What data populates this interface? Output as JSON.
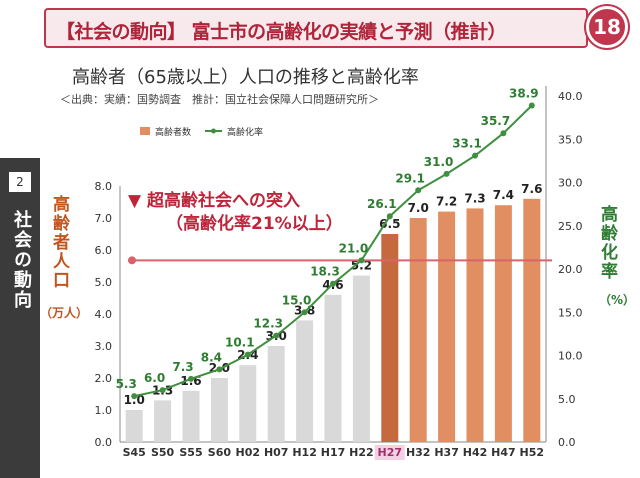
{
  "header": {
    "title": "【社会の動向】 富士市の高齢化の実績と予測（推計）",
    "page_number": "18"
  },
  "sidebar": {
    "number": "2",
    "title": "社会の動向"
  },
  "subtitle": "高齢者（65歳以上）人口の推移と高齢化率",
  "source": "＜出典：実績：国勢調査　推計：国立社会保障人口問題研究所＞",
  "annotation": {
    "line1": "▼ 超高齢社会への突入",
    "line2": "（高齢化率21%以上）"
  },
  "colors": {
    "banner_border": "#c0364d",
    "actual_bar": "#d9d9d9",
    "estimate_bar": "#e08e62",
    "highlight_bar": "#c56a3e",
    "rate_line": "#3f8f3f",
    "threshold_line": "#d9636a"
  },
  "chart_data": {
    "type": "bar",
    "title": "高齢者（65歳以上）人口の推移と高齢化率",
    "categories": [
      "S45",
      "S50",
      "S55",
      "S60",
      "H02",
      "H07",
      "H12",
      "H17",
      "H22",
      "H27",
      "H32",
      "H37",
      "H42",
      "H47",
      "H52"
    ],
    "highlight_category": "H27",
    "series": [
      {
        "name": "高齢者数",
        "axis": "left",
        "type": "bar",
        "values": [
          1.0,
          1.3,
          1.6,
          2.0,
          2.4,
          3.0,
          3.8,
          4.6,
          5.2,
          6.5,
          7.0,
          7.2,
          7.3,
          7.4,
          7.6
        ],
        "labels": [
          "1.0",
          "1.3",
          "1.6",
          "2.0",
          "2.4",
          "3.0",
          "3.8",
          "4.6",
          "5.2",
          "6.5",
          "7.0",
          "7.2",
          "7.3",
          "7.4",
          "7.6"
        ]
      },
      {
        "name": "高齢化率",
        "axis": "right",
        "type": "line",
        "values": [
          5.3,
          6.0,
          7.3,
          8.4,
          10.1,
          12.3,
          15.0,
          18.3,
          21.0,
          26.1,
          29.1,
          31.0,
          33.1,
          35.7,
          38.9
        ],
        "labels": [
          "5.3",
          "6.0",
          "7.3",
          "8.4",
          "10.1",
          "12.3",
          "15.0",
          "18.3",
          "21.0",
          "26.1",
          "29.1",
          "31.0",
          "33.1",
          "35.7",
          "38.9"
        ]
      }
    ],
    "threshold": 21,
    "ylabel_left": "高齢者人口",
    "ylabel_left_unit": "（万人）",
    "ylabel_right": "高齢化率",
    "ylabel_right_unit": "（%）",
    "ylim_left": [
      0,
      8
    ],
    "ylim_right": [
      0,
      40
    ],
    "left_ticks": [
      "0.0",
      "1.0",
      "2.0",
      "3.0",
      "4.0",
      "5.0",
      "6.0",
      "7.0",
      "8.0"
    ],
    "right_ticks": [
      "0.0",
      "5.0",
      "10.0",
      "15.0",
      "20.0",
      "25.0",
      "30.0",
      "35.0",
      "40.0"
    ],
    "legend": [
      "高齢者数",
      "高齢化率"
    ],
    "legend_position": "top-left",
    "grid": false
  }
}
